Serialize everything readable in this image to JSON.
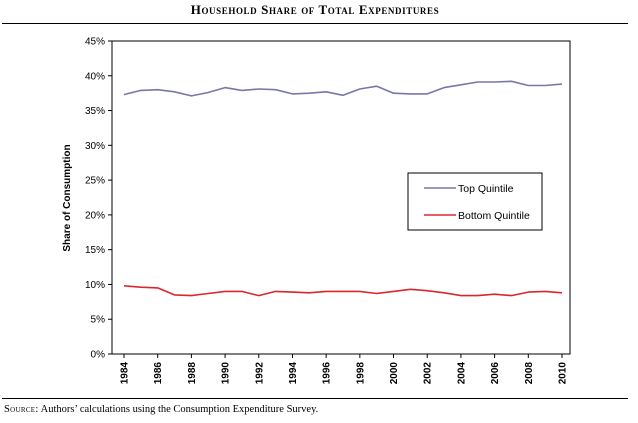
{
  "figure": {
    "title": "Household Share of Total Expenditures",
    "source_lead": "Source:",
    "source_text": " Authors’ calculations using the Consumption Expenditure Survey."
  },
  "chart_data": {
    "type": "line",
    "title": "Household Share of Total Expenditures",
    "xlabel": "",
    "ylabel": "Share of Consumption",
    "xlim": [
      1984,
      2010
    ],
    "ylim": [
      0,
      45
    ],
    "y_ticks": [
      "0%",
      "5%",
      "10%",
      "15%",
      "20%",
      "25%",
      "30%",
      "35%",
      "40%",
      "45%"
    ],
    "x_ticks": [
      "1984",
      "1986",
      "1988",
      "1990",
      "1992",
      "1994",
      "1996",
      "1998",
      "2000",
      "2002",
      "2004",
      "2006",
      "2008",
      "2010"
    ],
    "grid": false,
    "legend_position": "right-middle",
    "x": [
      1984,
      1985,
      1986,
      1987,
      1988,
      1989,
      1990,
      1991,
      1992,
      1993,
      1994,
      1995,
      1996,
      1997,
      1998,
      1999,
      2000,
      2001,
      2002,
      2003,
      2004,
      2005,
      2006,
      2007,
      2008,
      2009,
      2010
    ],
    "series": [
      {
        "name": "Top Quintile",
        "color": "#7878a8",
        "values": [
          37.3,
          37.9,
          38.0,
          37.7,
          37.1,
          37.6,
          38.3,
          37.9,
          38.1,
          38.0,
          37.4,
          37.5,
          37.7,
          37.2,
          38.1,
          38.5,
          37.5,
          37.4,
          37.4,
          38.3,
          38.7,
          39.1,
          39.1,
          39.2,
          38.6,
          38.6,
          38.8
        ]
      },
      {
        "name": "Bottom Quintile",
        "color": "#d8282e",
        "values": [
          9.8,
          9.6,
          9.5,
          8.5,
          8.4,
          8.7,
          9.0,
          9.0,
          8.4,
          9.0,
          8.9,
          8.8,
          9.0,
          9.0,
          9.0,
          8.7,
          9.0,
          9.3,
          9.1,
          8.8,
          8.4,
          8.4,
          8.6,
          8.4,
          8.9,
          9.0,
          8.8
        ]
      }
    ]
  }
}
